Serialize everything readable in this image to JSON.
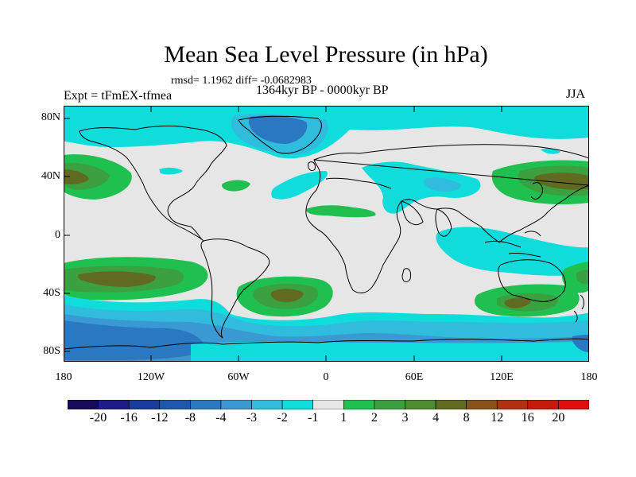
{
  "title": "Mean Sea Level Pressure (in hPa)",
  "stats": "rmsd= 1.1962 diff= -0.0682983",
  "experiment": "Expt = tFmEX-tfmea",
  "period": "1364kyr BP - 0000kyr BP",
  "season": "JJA",
  "lat_labels": [
    "80N",
    "40N",
    "0",
    "40S",
    "80S"
  ],
  "lon_labels": [
    "180",
    "120W",
    "60W",
    "0",
    "60E",
    "120E",
    "180"
  ],
  "colorbar": {
    "labels": [
      "-20",
      "-16",
      "-12",
      "-8",
      "-4",
      "-3",
      "-2",
      "-1",
      "1",
      "2",
      "3",
      "4",
      "8",
      "12",
      "16",
      "20"
    ],
    "colors": [
      "#1a0a5a",
      "#1c1c8c",
      "#1a3aa0",
      "#1c58b0",
      "#2a78c2",
      "#3a98d2",
      "#30bcdc",
      "#10dcdc",
      "#e6e6e6",
      "#20c050",
      "#3aa040",
      "#4e8a30",
      "#606a20",
      "#8a5218",
      "#b03010",
      "#c81a0a",
      "#e00e0e"
    ]
  }
}
